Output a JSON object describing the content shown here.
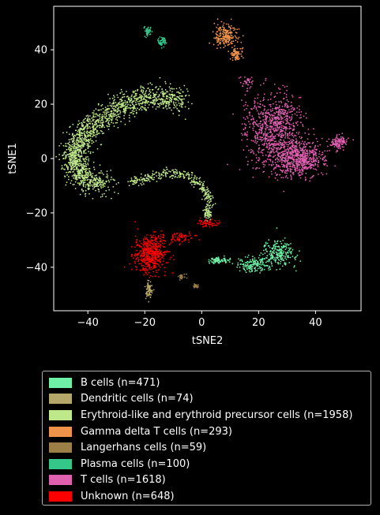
{
  "chart_data": {
    "type": "scatter",
    "xlabel": "tSNE2",
    "ylabel": "tSNE1",
    "xlim": [
      -52,
      56
    ],
    "ylim": [
      -56,
      56
    ],
    "xticks": [
      -40,
      -20,
      0,
      20,
      40
    ],
    "yticks": [
      40,
      20,
      0,
      -20,
      -40
    ],
    "grid": false,
    "legend_position": "below",
    "series": [
      {
        "name": "B cells (n=471)",
        "color": "#6ef0a6",
        "n": 471,
        "clusters": [
          {
            "cx": 27,
            "cy": -35,
            "rx": 5,
            "ry": 4.5,
            "w": 0.55
          },
          {
            "cx": 18,
            "cy": -39,
            "rx": 4.5,
            "ry": 2.5,
            "w": 0.3
          },
          {
            "cx": 6,
            "cy": -37.5,
            "rx": 3,
            "ry": 1,
            "w": 0.15
          }
        ]
      },
      {
        "name": "Dendritic cells (n=74)",
        "color": "#b5a76a",
        "n": 74,
        "clusters": [
          {
            "cx": -18.5,
            "cy": -48,
            "rx": 1.2,
            "ry": 3,
            "w": 1
          }
        ]
      },
      {
        "name": "Erythroid-like and erythroid precursor cells (n=1958)",
        "color": "#bfe88a",
        "n": 1958,
        "arc": true
      },
      {
        "name": "Gamma delta T cells (n=293)",
        "color": "#f0934a",
        "n": 293,
        "clusters": [
          {
            "cx": 8.5,
            "cy": 45,
            "rx": 3.5,
            "ry": 4,
            "w": 0.75
          },
          {
            "cx": 12,
            "cy": 38,
            "rx": 1.8,
            "ry": 2.5,
            "w": 0.25
          }
        ]
      },
      {
        "name": "Langerhans cells (n=59)",
        "color": "#9c7f46",
        "n": 59,
        "clusters": [
          {
            "cx": -7,
            "cy": -43.5,
            "rx": 1.2,
            "ry": 1,
            "w": 0.5
          },
          {
            "cx": -2,
            "cy": -47,
            "rx": 1,
            "ry": 0.8,
            "w": 0.5
          }
        ]
      },
      {
        "name": "Plasma cells (n=100)",
        "color": "#35c78a",
        "n": 100,
        "clusters": [
          {
            "cx": -19,
            "cy": 47,
            "rx": 1.2,
            "ry": 1.6,
            "w": 0.5
          },
          {
            "cx": -14,
            "cy": 43,
            "rx": 1.2,
            "ry": 1.6,
            "w": 0.5
          }
        ]
      },
      {
        "name": "T cells (n=1618)",
        "color": "#e060b0",
        "n": 1618,
        "clusters": [
          {
            "cx": 24,
            "cy": 10,
            "rx": 8,
            "ry": 13,
            "w": 0.4
          },
          {
            "cx": 34,
            "cy": 0,
            "rx": 8,
            "ry": 6,
            "w": 0.4
          },
          {
            "cx": 48,
            "cy": 6,
            "rx": 2.5,
            "ry": 2,
            "w": 0.07
          },
          {
            "cx": 16,
            "cy": 28,
            "rx": 2,
            "ry": 2,
            "w": 0.03
          },
          {
            "cx": 30,
            "cy": 15,
            "rx": 6,
            "ry": 8,
            "w": 0.1
          }
        ]
      },
      {
        "name": "Unknown (n=648)",
        "color": "#ff0000",
        "n": 648,
        "clusters": [
          {
            "cx": -18,
            "cy": -35,
            "rx": 5,
            "ry": 6,
            "w": 0.82
          },
          {
            "cx": -8,
            "cy": -29,
            "rx": 6,
            "ry": 1.5,
            "w": 0.1
          },
          {
            "cx": 2,
            "cy": -24,
            "rx": 3,
            "ry": 1.5,
            "w": 0.08
          }
        ]
      }
    ]
  }
}
